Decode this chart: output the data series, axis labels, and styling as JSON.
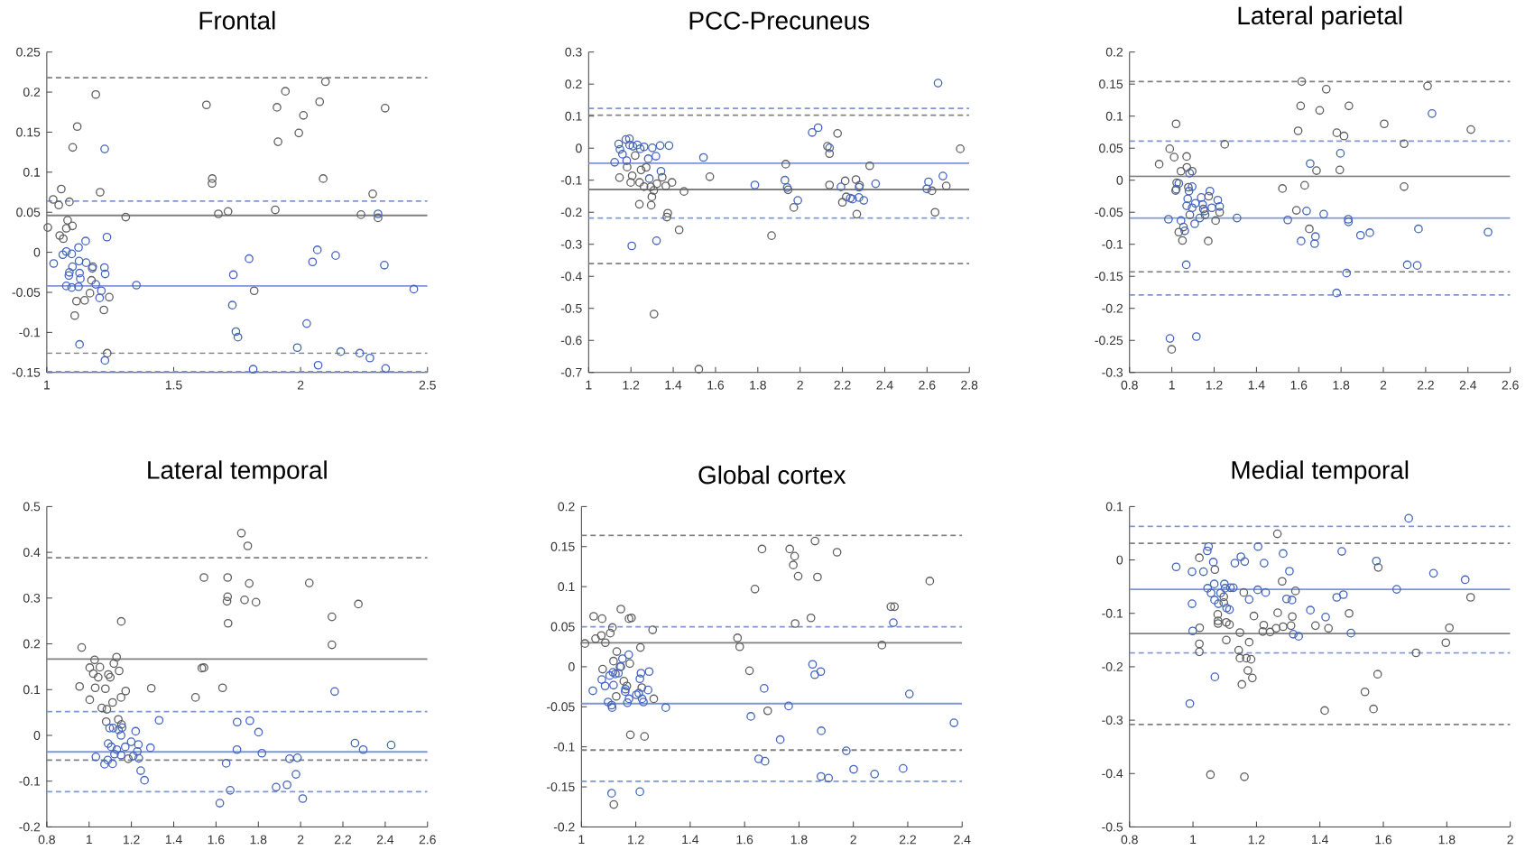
{
  "chart_data": [
    {
      "type": "scatter",
      "title": "Frontal",
      "marker": "circle",
      "xlim": [
        1,
        2.5
      ],
      "xticks": [
        1,
        1.5,
        2,
        2.5
      ],
      "ylim": [
        -0.15,
        0.25
      ],
      "yticks": [
        -0.15,
        -0.1,
        -0.05,
        0,
        0.05,
        0.1,
        0.15,
        0.2,
        0.25
      ],
      "ref_lines": [
        {
          "axis": "y",
          "value": 0.218,
          "color": "#808080",
          "line_style": "dashed"
        },
        {
          "axis": "y",
          "value": 0.046,
          "color": "#808080",
          "line_style": "solid"
        },
        {
          "axis": "y",
          "value": -0.126,
          "color": "#808080",
          "line_style": "dashed"
        },
        {
          "axis": "y",
          "value": 0.064,
          "color": "#7f96d6",
          "line_style": "dashed"
        },
        {
          "axis": "y",
          "value": -0.042,
          "color": "#7f96d6",
          "line_style": "solid"
        },
        {
          "axis": "y",
          "value": -0.149,
          "color": "#7f96d6",
          "line_style": "dashed"
        }
      ],
      "series": [
        {
          "color": "#606060",
          "x": [
            1.004,
            1.025,
            1.047,
            1.057,
            1.089,
            1.082,
            1.077,
            1.101,
            1.051,
            1.065,
            1.102,
            1.12,
            1.193,
            1.21,
            1.311,
            1.117,
            1.149,
            1.11,
            1.17,
            1.176,
            1.225,
            1.238,
            1.246,
            1.181,
            1.817,
            1.629,
            1.652,
            1.651,
            1.676,
            1.714,
            1.9,
            1.907,
            1.911,
            1.94,
            1.993,
            2.011,
            2.075,
            2.098,
            2.089,
            2.238,
            2.284,
            2.305,
            2.333
          ],
          "values": [
            0.031,
            0.066,
            0.059,
            0.079,
            0.063,
            0.04,
            0.03,
            0.033,
            0.021,
            0.017,
            0.131,
            0.157,
            0.197,
            0.075,
            0.044,
            -0.061,
            -0.06,
            -0.079,
            -0.051,
            -0.035,
            -0.072,
            -0.126,
            -0.056,
            -0.018,
            -0.048,
            0.184,
            0.092,
            0.086,
            0.048,
            0.051,
            0.053,
            0.181,
            0.138,
            0.201,
            0.149,
            0.171,
            0.188,
            0.213,
            0.092,
            0.047,
            0.073,
            0.043,
            0.18
          ]
        },
        {
          "color": "#4466c0",
          "x": [
            1.027,
            1.063,
            1.077,
            1.098,
            1.125,
            1.153,
            1.237,
            1.228,
            1.089,
            1.087,
            1.101,
            1.127,
            1.129,
            1.132,
            1.155,
            1.077,
            1.098,
            1.125,
            1.179,
            1.193,
            1.215,
            1.208,
            1.227,
            1.23,
            1.129,
            1.229,
            1.353,
            1.735,
            1.797,
            1.731,
            1.745,
            1.753,
            1.813,
            1.987,
            2.024,
            2.047,
            2.066,
            2.069,
            2.138,
            2.158,
            2.233,
            2.273,
            2.305,
            2.33,
            2.335,
            2.446
          ],
          "values": [
            -0.014,
            -0.003,
            0.001,
            -0.002,
            0.006,
            0.014,
            0.019,
            0.129,
            -0.025,
            -0.029,
            -0.018,
            -0.011,
            -0.026,
            -0.033,
            -0.013,
            -0.042,
            -0.044,
            -0.043,
            -0.02,
            -0.04,
            -0.048,
            -0.057,
            -0.019,
            -0.027,
            -0.115,
            -0.135,
            -0.041,
            -0.028,
            -0.008,
            -0.066,
            -0.099,
            -0.106,
            -0.146,
            -0.119,
            -0.089,
            -0.012,
            0.003,
            -0.141,
            -0.004,
            -0.124,
            -0.126,
            -0.132,
            0.048,
            -0.016,
            -0.145,
            -0.046
          ]
        }
      ]
    },
    {
      "type": "scatter",
      "title": "PCC-Precuneus",
      "marker": "circle",
      "xlim": [
        1,
        2.8
      ],
      "xticks": [
        1,
        1.2,
        1.4,
        1.6,
        1.8,
        2,
        2.2,
        2.4,
        2.6,
        2.8
      ],
      "ylim": [
        -0.7,
        0.3
      ],
      "yticks": [
        -0.7,
        -0.6,
        -0.5,
        -0.4,
        -0.3,
        -0.2,
        -0.1,
        0,
        0.1,
        0.2,
        0.3
      ],
      "ref_lines": [
        {
          "axis": "y",
          "value": 0.103,
          "color": "#808080",
          "line_style": "dashed"
        },
        {
          "axis": "y",
          "value": -0.129,
          "color": "#808080",
          "line_style": "solid"
        },
        {
          "axis": "y",
          "value": -0.36,
          "color": "#808080",
          "line_style": "dashed"
        },
        {
          "axis": "y",
          "value": 0.124,
          "color": "#7f96d6",
          "line_style": "dashed"
        },
        {
          "axis": "y",
          "value": -0.047,
          "color": "#7f96d6",
          "line_style": "solid"
        },
        {
          "axis": "y",
          "value": -0.218,
          "color": "#7f96d6",
          "line_style": "dashed"
        }
      ],
      "series": [
        {
          "color": "#606060",
          "x": [
            1.146,
            1.182,
            1.199,
            1.206,
            1.22,
            1.241,
            1.248,
            1.272,
            1.262,
            1.294,
            1.299,
            1.296,
            1.24,
            1.308,
            1.323,
            1.348,
            1.365,
            1.394,
            1.374,
            1.37,
            1.428,
            1.451,
            1.573,
            1.309,
            1.521,
            1.865,
            1.932,
            1.943,
            1.97,
            2.129,
            2.139,
            2.139,
            2.177,
            2.2,
            2.213,
            2.218,
            2.264,
            2.268,
            2.281,
            2.329,
            2.623,
            2.638,
            2.691,
            2.757
          ],
          "values": [
            -0.092,
            -0.059,
            -0.107,
            -0.086,
            -0.023,
            -0.107,
            -0.068,
            -0.06,
            -0.12,
            -0.121,
            -0.152,
            -0.178,
            -0.175,
            -0.132,
            -0.111,
            -0.091,
            -0.118,
            -0.107,
            -0.203,
            -0.215,
            -0.255,
            -0.135,
            -0.089,
            -0.518,
            -0.69,
            -0.273,
            -0.05,
            -0.13,
            -0.185,
            0.006,
            -0.017,
            -0.115,
            0.046,
            -0.169,
            -0.102,
            -0.152,
            -0.098,
            -0.206,
            -0.116,
            -0.055,
            -0.133,
            -0.2,
            -0.118,
            -0.002
          ]
        },
        {
          "color": "#4466c0",
          "x": [
            1.123,
            1.142,
            1.148,
            1.16,
            1.176,
            1.193,
            1.18,
            1.194,
            1.209,
            1.23,
            1.244,
            1.262,
            1.282,
            1.301,
            1.318,
            1.338,
            1.38,
            1.342,
            1.287,
            1.204,
            1.321,
            1.543,
            1.786,
            1.928,
            1.939,
            1.989,
            2.057,
            2.085,
            2.139,
            2.193,
            2.237,
            2.248,
            2.278,
            2.279,
            2.301,
            2.357,
            2.607,
            2.599,
            2.652,
            2.675
          ],
          "values": [
            -0.044,
            0.013,
            -0.004,
            -0.019,
            0.027,
            0.029,
            -0.039,
            0.01,
            0.006,
            0.01,
            -0.002,
            0.004,
            -0.033,
            0.001,
            -0.025,
            0.008,
            0.008,
            -0.072,
            -0.095,
            -0.305,
            -0.289,
            -0.029,
            -0.115,
            -0.1,
            -0.123,
            -0.163,
            0.049,
            0.064,
            0.001,
            -0.121,
            -0.156,
            -0.159,
            -0.154,
            -0.122,
            -0.163,
            -0.111,
            -0.105,
            -0.127,
            0.203,
            -0.087
          ]
        }
      ]
    },
    {
      "type": "scatter",
      "title": "Lateral parietal",
      "marker": "circle",
      "xlim": [
        0.8,
        2.6
      ],
      "xticks": [
        0.8,
        1,
        1.2,
        1.4,
        1.6,
        1.8,
        2,
        2.2,
        2.4,
        2.6
      ],
      "ylim": [
        -0.3,
        0.2
      ],
      "yticks": [
        -0.3,
        -0.25,
        -0.2,
        -0.15,
        -0.1,
        -0.05,
        0,
        0.05,
        0.1,
        0.15,
        0.2
      ],
      "ref_lines": [
        {
          "axis": "y",
          "value": 0.154,
          "color": "#808080",
          "line_style": "dashed"
        },
        {
          "axis": "y",
          "value": 0.006,
          "color": "#808080",
          "line_style": "solid"
        },
        {
          "axis": "y",
          "value": -0.143,
          "color": "#808080",
          "line_style": "dashed"
        },
        {
          "axis": "y",
          "value": 0.061,
          "color": "#7f96d6",
          "line_style": "dashed"
        },
        {
          "axis": "y",
          "value": -0.059,
          "color": "#7f96d6",
          "line_style": "solid"
        },
        {
          "axis": "y",
          "value": -0.179,
          "color": "#7f96d6",
          "line_style": "dashed"
        }
      ],
      "series": [
        {
          "color": "#606060",
          "x": [
            0.94,
            0.99,
            1.011,
            1.02,
            1.043,
            1.07,
            1.071,
            1.096,
            1.023,
            1.018,
            1.078,
            1.085,
            1.033,
            1.05,
            1.055,
            1.174,
            1.149,
            1.157,
            1.207,
            1.226,
            1.172,
            0.999,
            1.25,
            1.523,
            1.589,
            1.597,
            1.609,
            1.614,
            1.628,
            1.65,
            1.684,
            1.699,
            1.73,
            1.78,
            1.794,
            1.814,
            1.837,
            2.004,
            2.098,
            2.098,
            2.209,
            2.414
          ],
          "values": [
            0.025,
            0.049,
            0.036,
            0.088,
            0.014,
            0.037,
            0.02,
            0.014,
            -0.004,
            -0.016,
            -0.011,
            -0.054,
            -0.081,
            -0.094,
            -0.073,
            -0.025,
            -0.045,
            -0.054,
            -0.063,
            -0.05,
            -0.095,
            -0.264,
            0.056,
            -0.013,
            -0.047,
            0.077,
            0.116,
            0.154,
            -0.008,
            -0.076,
            0.015,
            0.109,
            0.142,
            0.074,
            0.016,
            0.069,
            0.116,
            0.088,
            0.057,
            -0.01,
            0.147,
            0.079
          ]
        },
        {
          "color": "#4466c0",
          "x": [
            0.984,
            0.991,
            1.021,
            1.033,
            1.043,
            1.061,
            1.068,
            1.07,
            1.075,
            1.081,
            1.084,
            1.096,
            1.096,
            1.111,
            1.108,
            1.116,
            1.132,
            1.139,
            1.146,
            1.155,
            1.18,
            1.189,
            1.217,
            1.226,
            1.308,
            1.548,
            1.611,
            1.637,
            1.654,
            1.675,
            1.679,
            1.718,
            1.779,
            1.797,
            1.826,
            1.834,
            1.835,
            1.892,
            1.936,
            2.113,
            2.16,
            2.166,
            2.23,
            2.495
          ],
          "values": [
            -0.061,
            -0.247,
            -0.014,
            -0.005,
            -0.063,
            -0.079,
            -0.132,
            -0.04,
            -0.029,
            -0.017,
            0.011,
            -0.01,
            -0.043,
            -0.036,
            -0.068,
            -0.244,
            -0.059,
            -0.027,
            -0.038,
            -0.048,
            -0.017,
            -0.043,
            -0.031,
            -0.041,
            -0.059,
            -0.062,
            -0.095,
            -0.048,
            0.026,
            -0.099,
            -0.088,
            -0.053,
            -0.176,
            0.042,
            -0.145,
            -0.061,
            -0.065,
            -0.086,
            -0.082,
            -0.132,
            -0.133,
            -0.076,
            0.104,
            -0.081
          ]
        }
      ]
    },
    {
      "type": "scatter",
      "title": "Lateral temporal",
      "marker": "circle",
      "xlim": [
        0.8,
        2.6
      ],
      "xticks": [
        0.8,
        1,
        1.2,
        1.4,
        1.6,
        1.8,
        2,
        2.2,
        2.4,
        2.6
      ],
      "ylim": [
        -0.2,
        0.5
      ],
      "yticks": [
        -0.2,
        -0.1,
        0,
        0.1,
        0.2,
        0.3,
        0.4,
        0.5
      ],
      "ref_lines": [
        {
          "axis": "y",
          "value": 0.388,
          "color": "#808080",
          "line_style": "dashed"
        },
        {
          "axis": "y",
          "value": 0.167,
          "color": "#808080",
          "line_style": "solid"
        },
        {
          "axis": "y",
          "value": -0.054,
          "color": "#808080",
          "line_style": "dashed"
        },
        {
          "axis": "y",
          "value": 0.052,
          "color": "#7f96d6",
          "line_style": "dashed"
        },
        {
          "axis": "y",
          "value": -0.036,
          "color": "#7f96d6",
          "line_style": "solid"
        },
        {
          "axis": "y",
          "value": -0.123,
          "color": "#7f96d6",
          "line_style": "dashed"
        }
      ],
      "series": [
        {
          "color": "#606060",
          "x": [
            0.965,
            0.955,
            1.003,
            1.003,
            1.026,
            1.02,
            1.029,
            1.043,
            1.051,
            1.06,
            1.077,
            1.084,
            1.081,
            1.091,
            1.1,
            1.111,
            1.117,
            1.13,
            1.142,
            1.151,
            1.152,
            1.138,
            1.153,
            1.173,
            1.185,
            1.294,
            1.503,
            1.533,
            1.543,
            1.543,
            1.631,
            1.655,
            1.655,
            1.652,
            1.657,
            1.72,
            1.735,
            1.75,
            1.757,
            1.789,
            2.041,
            2.148,
            2.148,
            2.273
          ],
          "values": [
            0.192,
            0.107,
            0.148,
            0.078,
            0.165,
            0.135,
            0.104,
            0.127,
            0.149,
            0.06,
            0.102,
            0.057,
            0.03,
            0.133,
            0.127,
            0.072,
            0.157,
            0.171,
            0.141,
            0.083,
            0.249,
            0.035,
            0.024,
            0.097,
            -0.051,
            0.103,
            0.083,
            0.147,
            0.148,
            0.345,
            0.104,
            0.345,
            0.303,
            0.293,
            0.245,
            0.442,
            0.296,
            0.414,
            0.332,
            0.291,
            0.333,
            0.259,
            0.198,
            0.287
          ]
        },
        {
          "color": "#4466c0",
          "x": [
            1.032,
            1.073,
            1.088,
            1.09,
            1.097,
            1.105,
            1.111,
            1.114,
            1.12,
            1.131,
            1.139,
            1.151,
            1.156,
            1.151,
            1.171,
            1.199,
            1.209,
            1.22,
            1.228,
            1.233,
            1.235,
            1.244,
            1.262,
            1.29,
            1.331,
            1.618,
            1.648,
            1.667,
            1.699,
            1.7,
            1.76,
            1.801,
            1.817,
            1.884,
            1.936,
            1.948,
            1.985,
            1.978,
            2.01,
            2.161,
            2.257,
            2.296,
            2.428
          ],
          "values": [
            -0.047,
            -0.063,
            -0.054,
            -0.018,
            0.016,
            -0.025,
            -0.062,
            0.016,
            -0.041,
            -0.031,
            0.012,
            -0.043,
            0.017,
            0,
            -0.025,
            -0.014,
            -0.045,
            0.009,
            -0.035,
            -0.02,
            -0.05,
            -0.077,
            -0.098,
            -0.027,
            0.033,
            -0.148,
            -0.061,
            -0.12,
            -0.031,
            0.029,
            0.032,
            0.007,
            -0.039,
            -0.113,
            -0.108,
            -0.051,
            -0.049,
            -0.085,
            -0.138,
            0.096,
            -0.017,
            -0.031,
            -0.021
          ]
        }
      ]
    },
    {
      "type": "scatter",
      "title": "Global cortex",
      "marker": "circle",
      "xlim": [
        1,
        2.4
      ],
      "xticks": [
        1,
        1.2,
        1.4,
        1.6,
        1.8,
        2,
        2.2,
        2.4
      ],
      "ylim": [
        -0.2,
        0.2
      ],
      "yticks": [
        -0.2,
        -0.15,
        -0.1,
        -0.05,
        0,
        0.05,
        0.1,
        0.15,
        0.2
      ],
      "ref_lines": [
        {
          "axis": "y",
          "value": 0.164,
          "color": "#808080",
          "line_style": "dashed"
        },
        {
          "axis": "y",
          "value": 0.03,
          "color": "#808080",
          "line_style": "solid"
        },
        {
          "axis": "y",
          "value": -0.104,
          "color": "#808080",
          "line_style": "dashed"
        },
        {
          "axis": "y",
          "value": 0.05,
          "color": "#7f96d6",
          "line_style": "dashed"
        },
        {
          "axis": "y",
          "value": -0.046,
          "color": "#7f96d6",
          "line_style": "solid"
        },
        {
          "axis": "y",
          "value": -0.143,
          "color": "#7f96d6",
          "line_style": "dashed"
        }
      ],
      "series": [
        {
          "color": "#606060",
          "x": [
            1.013,
            1.045,
            1.052,
            1.073,
            1.076,
            1.088,
            1.106,
            1.114,
            1.145,
            1.13,
            1.118,
            1.078,
            1.142,
            1.178,
            1.175,
            1.184,
            1.217,
            1.262,
            1.156,
            1.167,
            1.222,
            1.266,
            1.128,
            1.18,
            1.232,
            1.119,
            1.574,
            1.582,
            1.618,
            1.638,
            1.664,
            1.685,
            1.766,
            1.784,
            1.779,
            1.797,
            1.786,
            1.844,
            1.859,
            1.868,
            1.94,
            2.105,
            2.138,
            2.151,
            2.281
          ],
          "values": [
            0.029,
            0.063,
            0.035,
            0.039,
            0.06,
            0.03,
            0.042,
            0.049,
            0.072,
            0.019,
            0.007,
            -0.003,
            0,
            0.004,
            0.06,
            0.061,
            0.024,
            0.046,
            -0.018,
            -0.024,
            -0.026,
            -0.04,
            -0.037,
            -0.085,
            -0.087,
            -0.172,
            0.036,
            0.025,
            -0.005,
            0.097,
            0.147,
            -0.055,
            0.147,
            0.138,
            0.127,
            0.113,
            0.054,
            0.061,
            0.157,
            0.112,
            0.143,
            0.027,
            0.075,
            0.075,
            0.107
          ]
        },
        {
          "color": "#4466c0",
          "x": [
            1.042,
            1.075,
            1.087,
            1.098,
            1.104,
            1.111,
            1.113,
            1.116,
            1.118,
            1.125,
            1.136,
            1.145,
            1.151,
            1.161,
            1.162,
            1.169,
            1.174,
            1.175,
            1.202,
            1.211,
            1.215,
            1.219,
            1.223,
            1.228,
            1.245,
            1.249,
            1.31,
            1.111,
            1.215,
            1.623,
            1.652,
            1.675,
            1.672,
            1.731,
            1.762,
            1.85,
            1.858,
            1.88,
            1.882,
            1.881,
            1.909,
            1.974,
            2.001,
            2.078,
            2.147,
            2.183,
            2.206,
            2.37
          ],
          "values": [
            -0.03,
            -0.016,
            -0.024,
            -0.044,
            -0.011,
            -0.048,
            -0.051,
            -0.007,
            -0.023,
            -0.009,
            -0.008,
            0,
            0.01,
            -0.031,
            -0.028,
            -0.045,
            0.015,
            -0.04,
            -0.035,
            -0.033,
            -0.015,
            -0.008,
            -0.04,
            -0.044,
            -0.029,
            -0.006,
            -0.051,
            -0.158,
            -0.156,
            -0.062,
            -0.115,
            -0.118,
            -0.027,
            -0.091,
            -0.049,
            0.003,
            -0.01,
            -0.006,
            -0.08,
            -0.137,
            -0.139,
            -0.105,
            -0.128,
            -0.134,
            0.055,
            -0.127,
            -0.034,
            -0.07
          ]
        }
      ]
    },
    {
      "type": "scatter",
      "title": "Medial temporal",
      "marker": "circle",
      "xlim": [
        0.8,
        2
      ],
      "xticks": [
        0.8,
        1,
        1.2,
        1.4,
        1.6,
        1.8,
        2
      ],
      "ylim": [
        -0.5,
        0.1
      ],
      "yticks": [
        -0.5,
        -0.4,
        -0.3,
        -0.2,
        -0.1,
        0,
        0.1
      ],
      "ref_lines": [
        {
          "axis": "y",
          "value": 0.031,
          "color": "#808080",
          "line_style": "dashed"
        },
        {
          "axis": "y",
          "value": -0.138,
          "color": "#808080",
          "line_style": "solid"
        },
        {
          "axis": "y",
          "value": -0.308,
          "color": "#808080",
          "line_style": "dashed"
        },
        {
          "axis": "y",
          "value": 0.063,
          "color": "#7f96d6",
          "line_style": "dashed"
        },
        {
          "axis": "y",
          "value": -0.055,
          "color": "#7f96d6",
          "line_style": "solid"
        },
        {
          "axis": "y",
          "value": -0.174,
          "color": "#7f96d6",
          "line_style": "dashed"
        }
      ],
      "series": [
        {
          "color": "#606060",
          "x": [
            1.02,
            1.021,
            1.02,
            1.02,
            1.055,
            1.069,
            1.078,
            1.079,
            1.079,
            1.097,
            1.097,
            1.105,
            1.105,
            1.115,
            1.144,
            1.148,
            1.148,
            1.154,
            1.16,
            1.162,
            1.168,
            1.173,
            1.177,
            1.183,
            1.187,
            1.192,
            1.22,
            1.223,
            1.243,
            1.262,
            1.266,
            1.267,
            1.281,
            1.284,
            1.309,
            1.313,
            1.323,
            1.386,
            1.415,
            1.427,
            1.492,
            1.542,
            1.569,
            1.584,
            1.582,
            1.703,
            1.797,
            1.808,
            1.875
          ],
          "values": [
            0.004,
            -0.127,
            -0.157,
            -0.172,
            -0.402,
            -0.018,
            -0.102,
            -0.114,
            -0.119,
            -0.069,
            -0.08,
            -0.117,
            -0.15,
            -0.121,
            -0.169,
            -0.136,
            -0.184,
            -0.233,
            -0.061,
            -0.406,
            -0.184,
            -0.207,
            -0.154,
            -0.186,
            -0.221,
            -0.105,
            -0.134,
            -0.122,
            -0.135,
            -0.128,
            0.049,
            -0.099,
            -0.04,
            -0.125,
            -0.123,
            -0.106,
            -0.058,
            -0.123,
            -0.282,
            -0.128,
            -0.1,
            -0.247,
            -0.279,
            -0.014,
            -0.214,
            -0.174,
            -0.155,
            -0.127,
            -0.07
          ]
        },
        {
          "color": "#4466c0",
          "x": [
            0.947,
            0.997,
            0.997,
            0.999,
            0.99,
            1.033,
            1.045,
            1.049,
            1.046,
            1.057,
            1.064,
            1.067,
            1.068,
            1.069,
            1.08,
            1.087,
            1.099,
            1.101,
            1.106,
            1.115,
            1.118,
            1.127,
            1.132,
            1.151,
            1.163,
            1.177,
            1.204,
            1.205,
            1.224,
            1.229,
            1.284,
            1.295,
            1.304,
            1.312,
            1.316,
            1.333,
            1.37,
            1.418,
            1.453,
            1.469,
            1.474,
            1.498,
            1.578,
            1.642,
            1.68,
            1.758,
            1.858
          ],
          "values": [
            -0.013,
            -0.022,
            -0.082,
            -0.133,
            -0.269,
            -0.022,
            0.017,
            0.025,
            -0.053,
            -0.062,
            -0.004,
            -0.045,
            -0.075,
            -0.219,
            -0.082,
            -0.062,
            -0.045,
            -0.053,
            -0.09,
            -0.093,
            -0.052,
            -0.052,
            -0.006,
            0.006,
            -0.003,
            -0.074,
            -0.056,
            0.025,
            -0.006,
            -0.061,
            0.012,
            -0.073,
            -0.021,
            -0.075,
            -0.139,
            -0.143,
            -0.094,
            -0.107,
            -0.07,
            0.016,
            -0.065,
            -0.137,
            -0.002,
            -0.055,
            0.078,
            -0.025,
            -0.037
          ]
        }
      ]
    }
  ]
}
